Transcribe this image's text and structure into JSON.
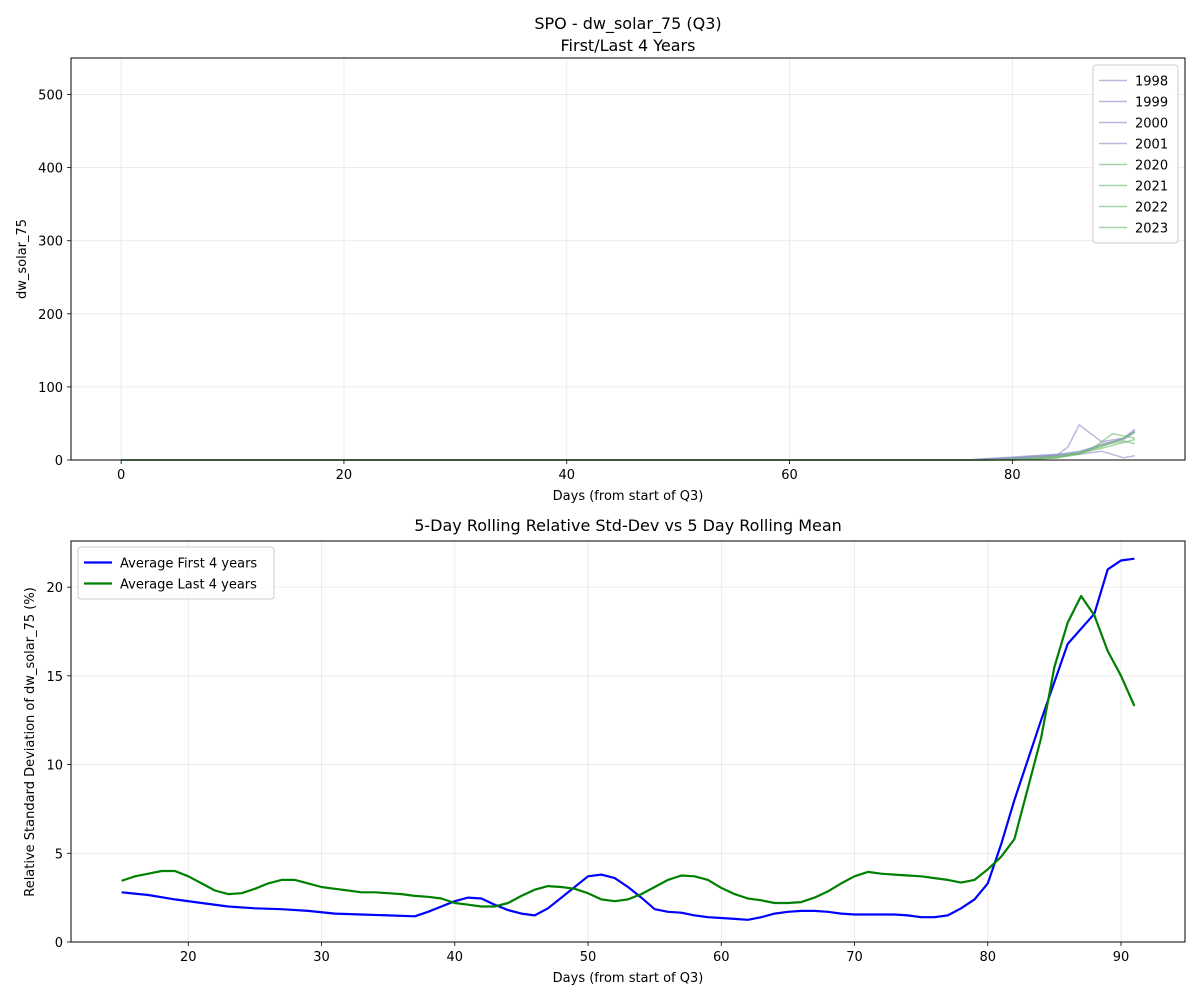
{
  "chart_data": [
    {
      "type": "line",
      "title": "SPO - dw_solar_75 (Q3)",
      "subtitle": "First/Last 4 Years",
      "xlabel": "Days (from start of Q3)",
      "ylabel": "dw_solar_75",
      "xlim": [
        -4.5,
        95.5
      ],
      "ylim": [
        0,
        550
      ],
      "xticks": [
        "0",
        "20",
        "40",
        "60",
        "80"
      ],
      "yticks": [
        "0",
        "100",
        "200",
        "300",
        "400",
        "500"
      ],
      "grid": true,
      "legend_position": "top-right",
      "series": [
        {
          "name": "1998",
          "color": "#8a8ac8",
          "x": [
            0,
            76,
            78,
            80,
            82,
            84,
            85,
            86,
            88,
            90,
            91
          ],
          "y": [
            0,
            0,
            0,
            2,
            4,
            6,
            18,
            48,
            25,
            30,
            42
          ]
        },
        {
          "name": "1999",
          "color": "#8a8ac8",
          "x": [
            0,
            76,
            78,
            80,
            82,
            84,
            86,
            88,
            90,
            91
          ],
          "y": [
            0,
            0,
            2,
            4,
            6,
            8,
            10,
            22,
            28,
            38
          ]
        },
        {
          "name": "2000",
          "color": "#8a8ac8",
          "x": [
            0,
            76,
            78,
            80,
            82,
            84,
            86,
            88,
            90,
            91
          ],
          "y": [
            0,
            0,
            1,
            2,
            4,
            6,
            8,
            12,
            3,
            6
          ]
        },
        {
          "name": "2001",
          "color": "#8a8ac8",
          "x": [
            0,
            76,
            78,
            80,
            82,
            84,
            86,
            88,
            90,
            91
          ],
          "y": [
            0,
            0,
            2,
            3,
            5,
            7,
            12,
            20,
            30,
            40
          ]
        },
        {
          "name": "2020",
          "color": "#6ab86a",
          "x": [
            0,
            78,
            80,
            82,
            84,
            86,
            87,
            89,
            91
          ],
          "y": [
            0,
            0,
            0,
            1,
            4,
            10,
            14,
            36,
            30
          ]
        },
        {
          "name": "2021",
          "color": "#6ab86a",
          "x": [
            0,
            78,
            80,
            82,
            84,
            85,
            86,
            88,
            90,
            91
          ],
          "y": [
            0,
            0,
            1,
            2,
            3,
            6,
            10,
            18,
            30,
            38
          ]
        },
        {
          "name": "2022",
          "color": "#6ab86a",
          "x": [
            0,
            78,
            80,
            82,
            84,
            86,
            88,
            90,
            91
          ],
          "y": [
            0,
            0,
            0,
            1,
            3,
            8,
            20,
            26,
            22
          ]
        },
        {
          "name": "2023",
          "color": "#6ab86a",
          "x": [
            0,
            78,
            80,
            82,
            84,
            86,
            88,
            90,
            91
          ],
          "y": [
            0,
            0,
            1,
            3,
            5,
            9,
            16,
            24,
            28
          ]
        }
      ]
    },
    {
      "type": "line",
      "title": "5-Day Rolling Relative Std-Dev vs 5 Day Rolling Mean",
      "xlabel": "Days (from start of Q3)",
      "ylabel": "Relative Standard Deviation of dw_solar_75 (%)",
      "xlim": [
        11.2,
        94.8
      ],
      "ylim": [
        0,
        22.6
      ],
      "xticks": [
        "20",
        "30",
        "40",
        "50",
        "60",
        "70",
        "80",
        "90"
      ],
      "yticks": [
        "0",
        "5",
        "10",
        "15",
        "20"
      ],
      "grid": true,
      "legend_position": "top-left",
      "series": [
        {
          "name": "Average First 4 years",
          "color": "#0000ff",
          "x": [
            15,
            17,
            19,
            21,
            23,
            25,
            27,
            29,
            31,
            33,
            35,
            37,
            38,
            39,
            40,
            41,
            42,
            43,
            44,
            45,
            46,
            47,
            48,
            49,
            50,
            51,
            52,
            53,
            54,
            55,
            56,
            57,
            58,
            59,
            60,
            61,
            62,
            63,
            64,
            65,
            66,
            67,
            68,
            69,
            70,
            71,
            72,
            73,
            74,
            75,
            76,
            77,
            78,
            79,
            80,
            81,
            82,
            84,
            86,
            88,
            89,
            90,
            91
          ],
          "y": [
            2.8,
            2.65,
            2.4,
            2.2,
            2.0,
            1.9,
            1.85,
            1.75,
            1.6,
            1.55,
            1.5,
            1.45,
            1.7,
            2.0,
            2.3,
            2.5,
            2.45,
            2.1,
            1.8,
            1.6,
            1.5,
            1.9,
            2.5,
            3.1,
            3.7,
            3.8,
            3.6,
            3.1,
            2.5,
            1.85,
            1.7,
            1.65,
            1.5,
            1.4,
            1.35,
            1.3,
            1.25,
            1.4,
            1.6,
            1.7,
            1.75,
            1.75,
            1.7,
            1.6,
            1.55,
            1.55,
            1.55,
            1.55,
            1.5,
            1.4,
            1.4,
            1.5,
            1.9,
            2.4,
            3.3,
            5.5,
            8.0,
            12.5,
            16.8,
            18.5,
            21.0,
            21.5,
            21.6
          ]
        },
        {
          "name": "Average Last 4 years",
          "color": "#008000",
          "x": [
            15,
            16,
            17,
            18,
            19,
            20,
            21,
            22,
            23,
            24,
            25,
            26,
            27,
            28,
            29,
            30,
            31,
            32,
            33,
            34,
            35,
            36,
            37,
            38,
            39,
            40,
            41,
            42,
            43,
            44,
            45,
            46,
            47,
            48,
            49,
            50,
            51,
            52,
            53,
            54,
            55,
            56,
            57,
            58,
            59,
            60,
            61,
            62,
            63,
            64,
            65,
            66,
            67,
            68,
            69,
            70,
            71,
            72,
            73,
            74,
            75,
            76,
            77,
            78,
            79,
            80,
            81,
            82,
            84,
            85,
            86,
            87,
            88,
            89,
            90,
            91
          ],
          "y": [
            3.45,
            3.7,
            3.85,
            4.0,
            4.0,
            3.7,
            3.3,
            2.9,
            2.7,
            2.75,
            3.0,
            3.3,
            3.5,
            3.5,
            3.3,
            3.1,
            3.0,
            2.9,
            2.8,
            2.8,
            2.75,
            2.7,
            2.6,
            2.55,
            2.45,
            2.2,
            2.1,
            2.0,
            2.0,
            2.2,
            2.6,
            2.95,
            3.15,
            3.1,
            3.0,
            2.75,
            2.4,
            2.3,
            2.4,
            2.7,
            3.1,
            3.5,
            3.75,
            3.7,
            3.5,
            3.05,
            2.7,
            2.45,
            2.35,
            2.2,
            2.2,
            2.25,
            2.5,
            2.85,
            3.3,
            3.7,
            3.95,
            3.85,
            3.8,
            3.75,
            3.7,
            3.6,
            3.5,
            3.35,
            3.5,
            4.1,
            4.8,
            5.8,
            11.5,
            15.5,
            18.0,
            19.5,
            18.4,
            16.4,
            15.0,
            13.3
          ]
        }
      ]
    }
  ]
}
